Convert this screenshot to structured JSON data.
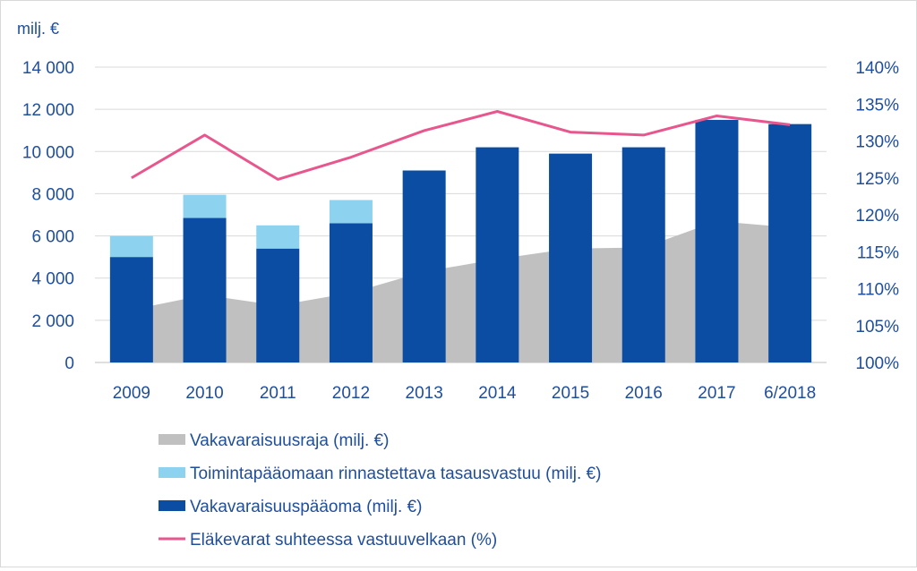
{
  "chart_data": {
    "type": "bar",
    "unit_label": "milj. €",
    "categories": [
      "2009",
      "2010",
      "2011",
      "2012",
      "2013",
      "2014",
      "2015",
      "2016",
      "2017",
      "6/2018"
    ],
    "y_left": {
      "min": 0,
      "max": 14000,
      "ticks": [
        0,
        2000,
        4000,
        6000,
        8000,
        10000,
        12000,
        14000
      ],
      "tick_labels": [
        "0",
        "2 000",
        "4 000",
        "6 000",
        "8 000",
        "10 000",
        "12 000",
        "14 000"
      ]
    },
    "y_right": {
      "min": 100,
      "max": 140,
      "ticks": [
        100,
        105,
        110,
        115,
        120,
        125,
        130,
        135,
        140
      ],
      "tick_labels": [
        "100%",
        "105%",
        "110%",
        "115%",
        "120%",
        "125%",
        "130%",
        "135%",
        "140%"
      ]
    },
    "grid": true,
    "legend_position": "bottom",
    "series": [
      {
        "name": "Vakavaraisuusraja (milj. €)",
        "type": "area",
        "axis": "left",
        "color": "#c0c0c0",
        "values": [
          2500,
          3200,
          2700,
          3300,
          4300,
          4900,
          5400,
          5450,
          6700,
          6400
        ]
      },
      {
        "name": "Toimintapääomaan rinnastettava tasausvastuu (milj. €)",
        "type": "bar-stacked",
        "axis": "left",
        "color": "#8dd3f0",
        "values": [
          1000,
          1100,
          1100,
          1100,
          0,
          0,
          0,
          0,
          0,
          0
        ]
      },
      {
        "name": "Vakavaraisuuspääoma (milj. €)",
        "type": "bar-stacked",
        "axis": "left",
        "color": "#0b4da2",
        "values": [
          5000,
          6850,
          5400,
          6600,
          9100,
          10200,
          9900,
          10200,
          11500,
          11300
        ]
      },
      {
        "name": "Eläkevarat suhteessa vastuuvelkaan (%)",
        "type": "line",
        "axis": "right",
        "color": "#e8568e",
        "values": [
          125.0,
          130.8,
          124.8,
          127.8,
          131.4,
          134.0,
          131.2,
          130.8,
          133.4,
          132.2
        ]
      }
    ]
  }
}
